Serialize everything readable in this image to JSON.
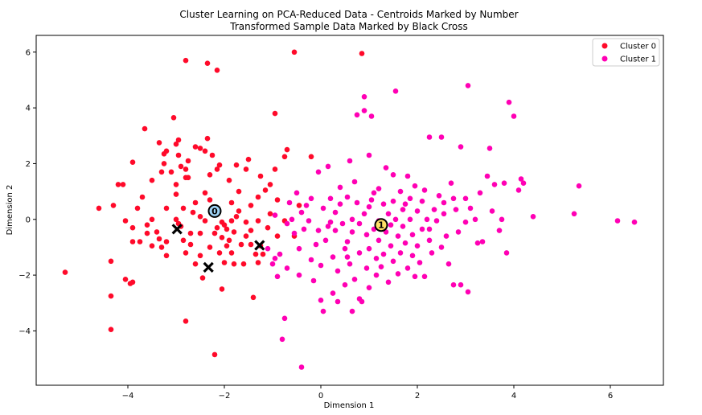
{
  "chart_data": {
    "type": "scatter",
    "title": "Cluster Learning on PCA-Reduced Data - Centroids Marked by Number",
    "subtitle": "Transformed Sample Data Marked by Black Cross",
    "xlabel": "Dimension 1",
    "ylabel": "Dimension 2",
    "xlim": [
      -5.9,
      7.1
    ],
    "ylim": [
      -5.95,
      6.6
    ],
    "xticks": [
      -4,
      -2,
      0,
      2,
      4,
      6
    ],
    "yticks": [
      -4,
      -2,
      0,
      2,
      4,
      6
    ],
    "legend_position": "top-right",
    "series": [
      {
        "name": "Cluster 0",
        "color": "#ff0a2a",
        "points": [
          [
            -5.3,
            -1.9
          ],
          [
            -4.6,
            0.4
          ],
          [
            -4.35,
            -1.5
          ],
          [
            -4.35,
            -2.75
          ],
          [
            -4.35,
            -3.95
          ],
          [
            -4.3,
            0.5
          ],
          [
            -4.2,
            1.25
          ],
          [
            -4.1,
            1.25
          ],
          [
            -4.05,
            -2.15
          ],
          [
            -3.95,
            -2.3
          ],
          [
            -3.9,
            -2.25
          ],
          [
            -3.9,
            2.05
          ],
          [
            -3.9,
            -0.3
          ],
          [
            -3.9,
            -0.8
          ],
          [
            -3.8,
            0.4
          ],
          [
            -3.75,
            -0.8
          ],
          [
            -3.7,
            0.8
          ],
          [
            -3.65,
            3.25
          ],
          [
            -3.6,
            -0.5
          ],
          [
            -3.5,
            0.0
          ],
          [
            -3.5,
            -0.95
          ],
          [
            -3.5,
            1.4
          ],
          [
            -3.4,
            -0.45
          ],
          [
            -3.35,
            2.75
          ],
          [
            -3.3,
            1.7
          ],
          [
            -3.3,
            -1.0
          ],
          [
            -3.25,
            2.0
          ],
          [
            -3.25,
            2.35
          ],
          [
            -3.2,
            -0.8
          ],
          [
            -3.2,
            -1.3
          ],
          [
            -3.2,
            0.4
          ],
          [
            -3.2,
            2.45
          ],
          [
            -3.1,
            1.7
          ],
          [
            -3.05,
            3.65
          ],
          [
            -3.0,
            0.0
          ],
          [
            -3.0,
            1.25
          ],
          [
            -3.0,
            2.7
          ],
          [
            -3.0,
            0.9
          ],
          [
            -2.95,
            2.85
          ],
          [
            -2.95,
            -0.15
          ],
          [
            -2.95,
            2.3
          ],
          [
            -2.9,
            1.9
          ],
          [
            -2.85,
            -0.75
          ],
          [
            -2.85,
            0.4
          ],
          [
            -2.8,
            -1.2
          ],
          [
            -2.8,
            1.5
          ],
          [
            -2.8,
            -3.65
          ],
          [
            -2.8,
            1.8
          ],
          [
            -2.8,
            5.7
          ],
          [
            -2.75,
            2.1
          ],
          [
            -2.75,
            1.5
          ],
          [
            -2.7,
            -0.5
          ],
          [
            -2.7,
            -0.9
          ],
          [
            -2.65,
            0.25
          ],
          [
            -2.6,
            2.6
          ],
          [
            -2.6,
            -1.6
          ],
          [
            -2.5,
            2.55
          ],
          [
            -2.5,
            -0.5
          ],
          [
            -2.5,
            0.1
          ],
          [
            -2.5,
            -1.3
          ],
          [
            -2.45,
            -2.1
          ],
          [
            -2.4,
            2.45
          ],
          [
            -2.4,
            -0.05
          ],
          [
            -2.4,
            0.95
          ],
          [
            -2.35,
            2.9
          ],
          [
            -2.35,
            5.6
          ],
          [
            -2.3,
            1.6
          ],
          [
            -2.3,
            0.7
          ],
          [
            -2.3,
            -1.0
          ],
          [
            -2.25,
            0.3
          ],
          [
            -2.25,
            2.3
          ],
          [
            -2.2,
            -0.5
          ],
          [
            -2.2,
            -4.85
          ],
          [
            -2.15,
            1.8
          ],
          [
            -2.15,
            5.35
          ],
          [
            -2.1,
            -1.2
          ],
          [
            -2.1,
            1.95
          ],
          [
            -2.05,
            -0.65
          ],
          [
            -2.05,
            -2.5
          ],
          [
            -2.05,
            -0.1
          ],
          [
            -2.0,
            -1.55
          ],
          [
            -2.0,
            -0.2
          ],
          [
            -1.95,
            -0.35
          ],
          [
            -1.95,
            -0.95
          ],
          [
            -1.9,
            -0.75
          ],
          [
            -1.9,
            1.4
          ],
          [
            -1.85,
            -1.2
          ],
          [
            -1.85,
            0.6
          ],
          [
            -1.8,
            -1.6
          ],
          [
            -1.8,
            -0.45
          ],
          [
            -1.75,
            0.1
          ],
          [
            -1.75,
            1.95
          ],
          [
            -1.7,
            0.3
          ],
          [
            -1.7,
            1.0
          ],
          [
            -1.65,
            -0.9
          ],
          [
            -1.6,
            -1.6
          ],
          [
            -1.55,
            -0.6
          ],
          [
            -1.55,
            1.8
          ],
          [
            -1.5,
            2.15
          ],
          [
            -1.45,
            -0.9
          ],
          [
            -1.45,
            -0.4
          ],
          [
            -1.45,
            0.5
          ],
          [
            -1.4,
            -2.8
          ],
          [
            -1.35,
            -1.25
          ],
          [
            -1.3,
            -1.55
          ],
          [
            -1.3,
            -0.05
          ],
          [
            -1.3,
            0.8
          ],
          [
            -1.25,
            -0.95
          ],
          [
            -1.25,
            1.55
          ],
          [
            -1.2,
            -1.25
          ],
          [
            -1.15,
            1.05
          ],
          [
            -1.1,
            -0.3
          ],
          [
            -1.05,
            0.2
          ],
          [
            -1.05,
            1.25
          ],
          [
            -0.95,
            3.8
          ],
          [
            -0.95,
            1.8
          ],
          [
            -0.9,
            -0.6
          ],
          [
            -0.9,
            0.7
          ],
          [
            -0.75,
            -0.05
          ],
          [
            -0.75,
            2.25
          ],
          [
            -0.7,
            2.5
          ],
          [
            -0.55,
            6.0
          ],
          [
            -0.55,
            -0.6
          ],
          [
            -0.45,
            0.5
          ],
          [
            -0.2,
            2.25
          ],
          [
            0.85,
            5.95
          ],
          [
            -4.05,
            -0.05
          ],
          [
            -3.6,
            -0.2
          ],
          [
            -2.6,
            0.6
          ],
          [
            -2.15,
            -0.3
          ],
          [
            -1.85,
            -0.05
          ],
          [
            -1.55,
            -0.1
          ],
          [
            -2.9,
            -0.25
          ],
          [
            -3.35,
            -0.7
          ]
        ]
      },
      {
        "name": "Cluster 1",
        "color": "#ff00b4",
        "points": [
          [
            -1.1,
            -1.05
          ],
          [
            -1.0,
            -1.6
          ],
          [
            -0.95,
            -1.4
          ],
          [
            -0.9,
            -2.05
          ],
          [
            -0.85,
            -1.25
          ],
          [
            -0.8,
            -4.3
          ],
          [
            -0.75,
            -3.55
          ],
          [
            -0.7,
            -1.75
          ],
          [
            -0.7,
            -0.15
          ],
          [
            -0.65,
            0.6
          ],
          [
            -0.6,
            0.0
          ],
          [
            -0.55,
            -0.5
          ],
          [
            -0.5,
            0.95
          ],
          [
            -0.45,
            -2.0
          ],
          [
            -0.45,
            -1.05
          ],
          [
            -0.4,
            0.25
          ],
          [
            -0.4,
            -5.3
          ],
          [
            -0.3,
            0.5
          ],
          [
            -0.25,
            -0.05
          ],
          [
            -0.2,
            -1.45
          ],
          [
            -0.2,
            0.75
          ],
          [
            -0.15,
            -2.2
          ],
          [
            -0.1,
            -0.9
          ],
          [
            -0.05,
            -0.4
          ],
          [
            -0.05,
            1.7
          ],
          [
            0.0,
            -1.65
          ],
          [
            0.0,
            -2.9
          ],
          [
            0.05,
            0.4
          ],
          [
            0.05,
            -3.3
          ],
          [
            0.1,
            -0.75
          ],
          [
            0.15,
            1.9
          ],
          [
            0.15,
            -0.25
          ],
          [
            0.2,
            0.75
          ],
          [
            0.25,
            -1.35
          ],
          [
            0.25,
            -2.65
          ],
          [
            0.3,
            0.25
          ],
          [
            0.3,
            -0.4
          ],
          [
            0.35,
            -1.85
          ],
          [
            0.35,
            -2.95
          ],
          [
            0.4,
            1.15
          ],
          [
            0.4,
            0.55
          ],
          [
            0.45,
            -0.15
          ],
          [
            0.5,
            -1.05
          ],
          [
            0.5,
            -2.35
          ],
          [
            0.55,
            0.8
          ],
          [
            0.55,
            -0.8
          ],
          [
            0.6,
            2.1
          ],
          [
            0.6,
            -1.6
          ],
          [
            0.65,
            0.0
          ],
          [
            0.65,
            -0.45
          ],
          [
            0.65,
            -3.3
          ],
          [
            0.7,
            1.35
          ],
          [
            0.7,
            -2.15
          ],
          [
            0.75,
            3.75
          ],
          [
            0.75,
            0.6
          ],
          [
            0.8,
            -0.15
          ],
          [
            0.8,
            -1.2
          ],
          [
            0.8,
            -2.85
          ],
          [
            0.85,
            -2.95
          ],
          [
            0.9,
            4.4
          ],
          [
            0.9,
            3.9
          ],
          [
            0.9,
            0.2
          ],
          [
            0.95,
            -0.55
          ],
          [
            0.95,
            -1.75
          ],
          [
            1.0,
            2.3
          ],
          [
            1.0,
            0.45
          ],
          [
            1.0,
            -1.05
          ],
          [
            1.0,
            -2.45
          ],
          [
            1.05,
            3.7
          ],
          [
            1.1,
            0.95
          ],
          [
            1.1,
            -0.35
          ],
          [
            1.15,
            -1.4
          ],
          [
            1.15,
            -2.0
          ],
          [
            1.2,
            1.1
          ],
          [
            1.2,
            -0.05
          ],
          [
            1.2,
            -0.75
          ],
          [
            1.25,
            -1.7
          ],
          [
            1.3,
            0.55
          ],
          [
            1.3,
            -1.25
          ],
          [
            1.35,
            1.85
          ],
          [
            1.35,
            -0.45
          ],
          [
            1.4,
            0.2
          ],
          [
            1.4,
            -2.25
          ],
          [
            1.45,
            -0.95
          ],
          [
            1.5,
            1.6
          ],
          [
            1.5,
            0.65
          ],
          [
            1.5,
            -1.5
          ],
          [
            1.55,
            4.6
          ],
          [
            1.55,
            0.0
          ],
          [
            1.6,
            -0.6
          ],
          [
            1.6,
            -1.95
          ],
          [
            1.65,
            1.0
          ],
          [
            1.65,
            -1.2
          ],
          [
            1.7,
            0.35
          ],
          [
            1.7,
            -0.25
          ],
          [
            1.75,
            -0.85
          ],
          [
            1.8,
            1.55
          ],
          [
            1.8,
            -1.75
          ],
          [
            1.85,
            0.75
          ],
          [
            1.85,
            0.0
          ],
          [
            1.9,
            -0.55
          ],
          [
            1.9,
            -1.3
          ],
          [
            1.95,
            1.2
          ],
          [
            1.95,
            -2.05
          ],
          [
            2.0,
            0.3
          ],
          [
            2.0,
            -0.95
          ],
          [
            2.05,
            -1.55
          ],
          [
            2.1,
            0.65
          ],
          [
            2.1,
            -0.35
          ],
          [
            2.15,
            1.05
          ],
          [
            2.15,
            -2.05
          ],
          [
            2.2,
            0.0
          ],
          [
            2.25,
            2.95
          ],
          [
            2.25,
            -0.75
          ],
          [
            2.3,
            -1.2
          ],
          [
            2.35,
            0.35
          ],
          [
            2.4,
            -0.05
          ],
          [
            2.45,
            0.85
          ],
          [
            2.5,
            2.95
          ],
          [
            2.5,
            -1.0
          ],
          [
            2.55,
            0.2
          ],
          [
            2.6,
            -0.6
          ],
          [
            2.65,
            -1.6
          ],
          [
            2.7,
            1.3
          ],
          [
            2.75,
            0.75
          ],
          [
            2.75,
            -2.35
          ],
          [
            2.8,
            0.35
          ],
          [
            2.85,
            -0.45
          ],
          [
            2.9,
            2.6
          ],
          [
            2.9,
            -2.35
          ],
          [
            3.0,
            0.75
          ],
          [
            3.05,
            4.8
          ],
          [
            3.05,
            -2.6
          ],
          [
            3.1,
            0.4
          ],
          [
            3.2,
            0.0
          ],
          [
            3.25,
            -0.85
          ],
          [
            3.3,
            0.95
          ],
          [
            3.35,
            -0.8
          ],
          [
            3.45,
            1.55
          ],
          [
            3.5,
            2.55
          ],
          [
            3.55,
            0.3
          ],
          [
            3.6,
            1.25
          ],
          [
            3.7,
            -0.4
          ],
          [
            3.75,
            0.0
          ],
          [
            3.8,
            1.3
          ],
          [
            3.85,
            -1.2
          ],
          [
            3.9,
            4.2
          ],
          [
            4.0,
            3.7
          ],
          [
            4.1,
            1.05
          ],
          [
            4.15,
            1.45
          ],
          [
            4.2,
            1.3
          ],
          [
            4.4,
            0.1
          ],
          [
            5.25,
            0.2
          ],
          [
            5.35,
            1.2
          ],
          [
            6.15,
            -0.05
          ],
          [
            6.5,
            -0.1
          ],
          [
            -0.95,
            0.15
          ],
          [
            -0.35,
            -0.35
          ],
          [
            0.2,
            -0.1
          ],
          [
            0.55,
            -1.35
          ],
          [
            1.05,
            0.7
          ],
          [
            1.45,
            -0.2
          ],
          [
            1.75,
            0.55
          ],
          [
            2.25,
            -0.35
          ],
          [
            2.55,
            0.6
          ],
          [
            3.0,
            -0.1
          ]
        ]
      }
    ],
    "centroids": [
      {
        "label": "0",
        "x": -2.2,
        "y": 0.3,
        "fill": "#9fd4f7"
      },
      {
        "label": "1",
        "x": 1.25,
        "y": -0.2,
        "fill": "#ffe066"
      }
    ],
    "samples": [
      {
        "x": -2.98,
        "y": -0.35
      },
      {
        "x": -2.33,
        "y": -1.72
      },
      {
        "x": -1.27,
        "y": -0.93
      }
    ]
  }
}
